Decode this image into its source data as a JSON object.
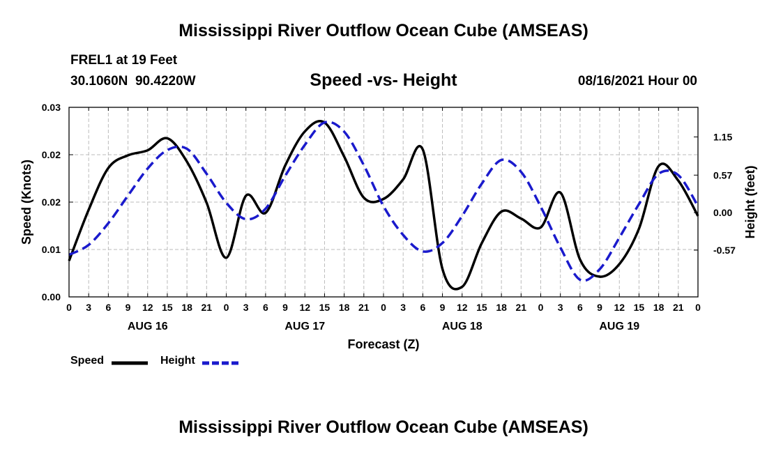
{
  "page": {
    "top_title": "Mississippi River Outflow Ocean Cube (AMSEAS)",
    "bottom_title": "Mississippi River Outflow Ocean Cube (AMSEAS)",
    "station": "FREL1 at 19 Feet",
    "coords": "30.1060N  90.4220W",
    "subtitle": "Speed -vs- Height",
    "datetime": "08/16/2021 Hour 00"
  },
  "chart_data": {
    "type": "line",
    "xlabel": "Forecast (Z)",
    "ylabel_left": "Speed (Knots)",
    "ylabel_right": "Height (feet)",
    "xlim": [
      0,
      96
    ],
    "ylim_left": [
      0,
      0.03
    ],
    "ylim_right": [
      -1.28,
      1.6
    ],
    "x_ticks": [
      0,
      3,
      6,
      9,
      12,
      15,
      18,
      21,
      24,
      27,
      30,
      33,
      36,
      39,
      42,
      45,
      48,
      51,
      54,
      57,
      60,
      63,
      66,
      69,
      72,
      75,
      78,
      81,
      84,
      87,
      90,
      93,
      96
    ],
    "x_tick_labels": [
      "0",
      "3",
      "6",
      "9",
      "12",
      "15",
      "18",
      "21",
      "0",
      "3",
      "6",
      "9",
      "12",
      "15",
      "18",
      "21",
      "0",
      "3",
      "6",
      "9",
      "12",
      "15",
      "18",
      "21",
      "0",
      "3",
      "6",
      "9",
      "12",
      "15",
      "18",
      "21",
      "0"
    ],
    "day_labels": [
      {
        "x": 12,
        "label": "AUG 16"
      },
      {
        "x": 36,
        "label": "AUG 17"
      },
      {
        "x": 60,
        "label": "AUG 18"
      },
      {
        "x": 84,
        "label": "AUG 19"
      }
    ],
    "y_left_ticks": [
      0,
      0.0075,
      0.015,
      0.0225,
      0.03
    ],
    "y_left_tick_labels": [
      "0.00",
      "0.01",
      "0.02",
      "0.02",
      "0.03"
    ],
    "y_right_ticks": [
      -0.57,
      0.0,
      0.57,
      1.15
    ],
    "y_right_tick_labels": [
      "-0.57",
      "0.00",
      "0.57",
      "1.15"
    ],
    "grid": true,
    "series": [
      {
        "name": "Speed",
        "axis": "left",
        "color": "#000000",
        "dash": "solid",
        "x": [
          0,
          3,
          6,
          9,
          12,
          15,
          18,
          21,
          24,
          27,
          30,
          33,
          36,
          39,
          42,
          45,
          48,
          51,
          54,
          57,
          60,
          63,
          66,
          69,
          72,
          75,
          78,
          81,
          84,
          87,
          90,
          93,
          96
        ],
        "y": [
          0.0057,
          0.0138,
          0.0204,
          0.0224,
          0.0232,
          0.0251,
          0.0214,
          0.0149,
          0.0062,
          0.016,
          0.0133,
          0.0208,
          0.0262,
          0.0276,
          0.0222,
          0.0157,
          0.0155,
          0.0186,
          0.0233,
          0.0044,
          0.0016,
          0.0085,
          0.0135,
          0.0124,
          0.011,
          0.0165,
          0.0059,
          0.0032,
          0.0052,
          0.0108,
          0.0207,
          0.0184,
          0.0128
        ]
      },
      {
        "name": "Height",
        "axis": "right",
        "color": "#1a1acc",
        "dash": "dashed",
        "x": [
          0,
          3,
          6,
          9,
          12,
          15,
          18,
          21,
          24,
          27,
          30,
          33,
          36,
          39,
          42,
          45,
          48,
          51,
          54,
          57,
          60,
          63,
          66,
          69,
          72,
          75,
          78,
          81,
          84,
          87,
          90,
          93,
          96
        ],
        "y": [
          -0.64,
          -0.49,
          -0.16,
          0.26,
          0.67,
          0.95,
          0.97,
          0.59,
          0.15,
          -0.1,
          0.06,
          0.56,
          1.03,
          1.37,
          1.23,
          0.72,
          0.1,
          -0.34,
          -0.59,
          -0.46,
          -0.05,
          0.44,
          0.8,
          0.62,
          0.09,
          -0.53,
          -1.02,
          -0.86,
          -0.38,
          0.13,
          0.59,
          0.57,
          0.1
        ]
      }
    ],
    "legend": [
      {
        "name": "Speed",
        "color": "#000000",
        "dash": "solid"
      },
      {
        "name": "Height",
        "color": "#1a1acc",
        "dash": "dashed"
      }
    ]
  }
}
